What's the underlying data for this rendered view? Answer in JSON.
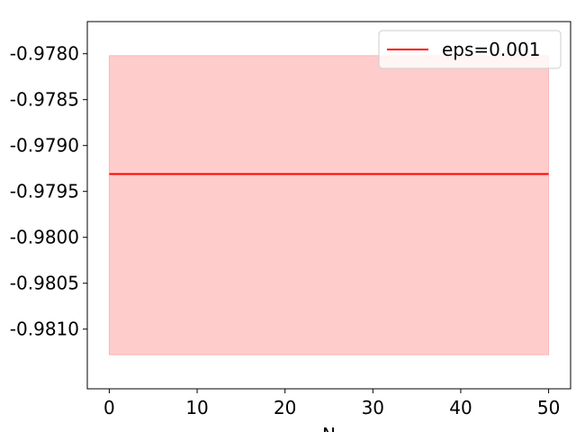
{
  "chart_data": {
    "type": "line",
    "title": "",
    "xlabel": "N",
    "ylabel": "",
    "xlim": [
      -2.5,
      52.5
    ],
    "ylim": [
      -0.98165,
      -0.97765
    ],
    "xticks": [
      0,
      10,
      20,
      30,
      40,
      50
    ],
    "yticks": [
      -0.978,
      -0.9785,
      -0.979,
      -0.9795,
      -0.98,
      -0.9805,
      -0.981
    ],
    "xtick_labels": [
      "0",
      "10",
      "20",
      "30",
      "40",
      "50"
    ],
    "ytick_labels": [
      "-0.9780",
      "-0.9785",
      "-0.9790",
      "-0.9795",
      "-0.9800",
      "-0.9805",
      "-0.9810"
    ],
    "grid": false,
    "legend_position": "top-right",
    "series": [
      {
        "name": "eps=0.001",
        "x": [
          0,
          50
        ],
        "y": [
          -0.97931,
          -0.97931
        ],
        "color": "#ff0000"
      }
    ],
    "band": {
      "x": [
        0,
        50
      ],
      "lower": [
        -0.98128,
        -0.98128
      ],
      "upper": [
        -0.97802,
        -0.97802
      ],
      "color": "#ff0000",
      "opacity": 0.2
    }
  }
}
